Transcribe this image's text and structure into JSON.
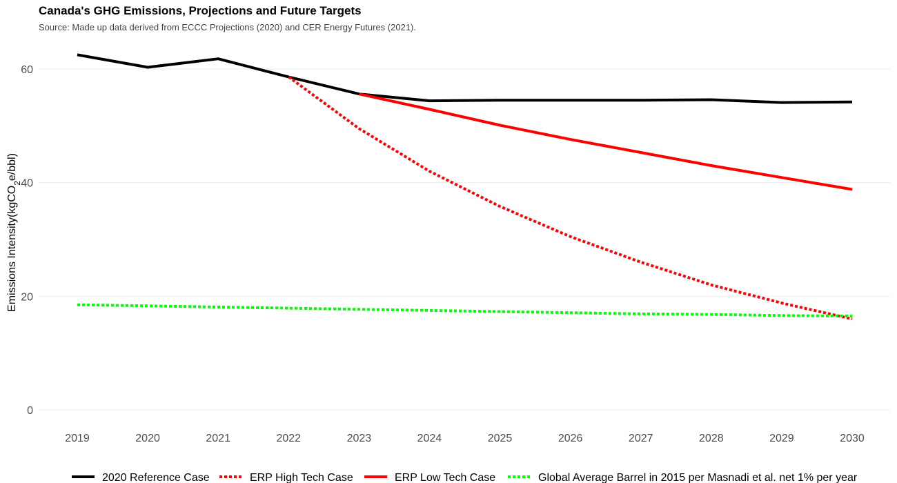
{
  "chart_data": {
    "type": "line",
    "title": "Canada's GHG Emissions, Projections and Future Targets",
    "subtitle": "Source: Made up data derived from ECCC Projections (2020) and CER Energy Futures (2021).",
    "ylabel_parts": [
      "Emissions Intensity(kgCO",
      "2",
      "e/bbl)"
    ],
    "xlabel": "",
    "x": [
      "2019",
      "2020",
      "2021",
      "2022",
      "2023",
      "2024",
      "2025",
      "2026",
      "2027",
      "2028",
      "2029",
      "2030"
    ],
    "ylim": [
      -1.5,
      64
    ],
    "yticks": [
      0,
      20,
      40,
      60
    ],
    "grid": true,
    "legend_position": "bottom",
    "series": [
      {
        "name": "2020 Reference Case",
        "color": "#000000",
        "dash": "solid",
        "values": [
          62.5,
          60.3,
          61.8,
          58.6,
          55.6,
          54.4,
          54.5,
          54.5,
          54.5,
          54.6,
          54.1,
          54.2
        ]
      },
      {
        "name": "ERP High Tech Case",
        "color": "#ff0000",
        "dash": "dotted",
        "values": [
          null,
          null,
          null,
          58.6,
          49.5,
          42.0,
          35.8,
          30.5,
          26.0,
          22.0,
          18.8,
          16.0
        ]
      },
      {
        "name": "ERP Low Tech Case",
        "color": "#ff0000",
        "dash": "solid",
        "values": [
          null,
          null,
          null,
          null,
          55.6,
          52.9,
          50.1,
          47.6,
          45.3,
          43.0,
          40.9,
          38.8
        ]
      },
      {
        "name": "Global Average Barrel in 2015 per Masnadi et al. net 1% per year",
        "color": "#00ff00",
        "dash": "dotted",
        "values": [
          18.5,
          18.3,
          18.1,
          17.9,
          17.7,
          17.5,
          17.3,
          17.1,
          16.9,
          16.8,
          16.6,
          16.5
        ]
      }
    ]
  }
}
